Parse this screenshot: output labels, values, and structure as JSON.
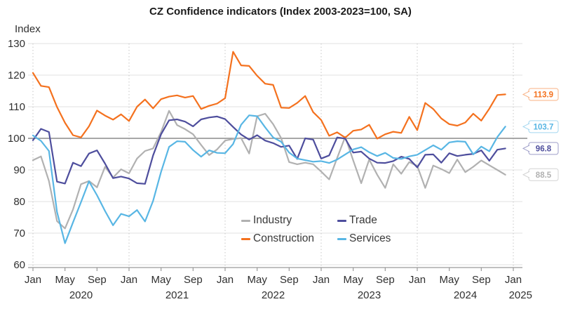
{
  "title": "CZ Confidence indicators (Index 2003-2023=100, SA)",
  "y_axis_label": "Index",
  "colors": {
    "industry": "#B1B1B1",
    "construction": "#F4711E",
    "trade": "#4E4E9D",
    "services": "#58B6E4",
    "grid": "#E2E2E2",
    "reference_line": "#8C8C8C",
    "jan_dotted": "#C6C6C6",
    "axis": "#9A9A9A",
    "tick_text": "#303030"
  },
  "chart_data": {
    "type": "line",
    "title": "CZ Confidence indicators (Index 2003-2023=100, SA)",
    "xlabel": "",
    "ylabel": "Index",
    "ylim": [
      60,
      130
    ],
    "y_ticks": [
      60,
      70,
      80,
      90,
      100,
      110,
      120,
      130
    ],
    "reference_line": 100,
    "grid": "horizontal solid, dotted vertical at each January",
    "legend_position": "inside bottom center, two columns",
    "x_start": "2020-01",
    "x_end": "2024-12",
    "x_ticks": [
      {
        "month_index": 0,
        "label": "Jan"
      },
      {
        "month_index": 4,
        "label": "May"
      },
      {
        "month_index": 8,
        "label": "Sep"
      },
      {
        "month_index": 12,
        "label": "Jan"
      },
      {
        "month_index": 16,
        "label": "May"
      },
      {
        "month_index": 20,
        "label": "Sep"
      },
      {
        "month_index": 24,
        "label": "Jan"
      },
      {
        "month_index": 28,
        "label": "May"
      },
      {
        "month_index": 32,
        "label": "Sep"
      },
      {
        "month_index": 36,
        "label": "Jan"
      },
      {
        "month_index": 40,
        "label": "May"
      },
      {
        "month_index": 44,
        "label": "Sep"
      },
      {
        "month_index": 48,
        "label": "Jan"
      },
      {
        "month_index": 52,
        "label": "May"
      },
      {
        "month_index": 56,
        "label": "Sep"
      },
      {
        "month_index": 60,
        "label": "Jan"
      }
    ],
    "year_labels": [
      {
        "label": "2020",
        "month_center": 6
      },
      {
        "label": "2021",
        "month_center": 18
      },
      {
        "label": "2022",
        "month_center": 30
      },
      {
        "label": "2023",
        "month_center": 42
      },
      {
        "label": "2024",
        "month_center": 54
      },
      {
        "label": "2025",
        "month_center": 60.9
      }
    ],
    "series": [
      {
        "name": "Industry",
        "color_key": "industry",
        "values": [
          93.1,
          94.3,
          86.5,
          73.8,
          71.5,
          77.5,
          85.5,
          86.5,
          84.5,
          91,
          87.6,
          90.2,
          88.9,
          93.6,
          96,
          96.8,
          102,
          108.7,
          104.2,
          102.9,
          101.3,
          97.9,
          94.7,
          96.5,
          99.3,
          99.8,
          100.1,
          95.2,
          107,
          107.8,
          104.5,
          100.1,
          92.5,
          91.8,
          92.3,
          91.8,
          89.5,
          87,
          93.8,
          100.5,
          93,
          85.8,
          93.3,
          88.5,
          84.3,
          91.8,
          88.8,
          92.5,
          91.3,
          84.3,
          91.4,
          90.3,
          89,
          93.3,
          89.3,
          91,
          93,
          91.5,
          90,
          88.5
        ]
      },
      {
        "name": "Construction",
        "color_key": "construction",
        "values": [
          120.7,
          116.6,
          116.2,
          109.9,
          104.9,
          101,
          100.3,
          103.8,
          108.8,
          107.2,
          105.9,
          107.6,
          105.5,
          110,
          112.3,
          109.5,
          112.4,
          113.2,
          113.6,
          112.9,
          113.4,
          109.3,
          110.3,
          111,
          112.7,
          127.4,
          123.1,
          122.9,
          119.8,
          117.3,
          116.9,
          109.7,
          109.6,
          111.2,
          113.4,
          108.3,
          105.8,
          100.8,
          101.9,
          100.2,
          102.4,
          102.8,
          104.3,
          99.9,
          101.3,
          102.1,
          101.7,
          106.8,
          102.6,
          111.2,
          109.3,
          106.3,
          104.5,
          104,
          105,
          107.8,
          105.6,
          109.4,
          113.7,
          113.9
        ]
      },
      {
        "name": "Trade",
        "color_key": "trade",
        "values": [
          99.4,
          103,
          102,
          86.3,
          85.7,
          92.3,
          91.2,
          95.2,
          96.2,
          92,
          87.4,
          87.9,
          87.3,
          85.8,
          85.6,
          94.6,
          101.3,
          105.7,
          106,
          105.3,
          103.8,
          106,
          106.6,
          106.9,
          106.1,
          103.6,
          101.2,
          99.6,
          101,
          99.3,
          98.5,
          97.3,
          97.7,
          93.5,
          100,
          99.6,
          93.6,
          94.6,
          100.3,
          99.9,
          95.5,
          95.8,
          93.6,
          92.3,
          92.2,
          92.8,
          94.2,
          93.5,
          90.8,
          94.8,
          94.9,
          92.3,
          95.3,
          94.4,
          94.8,
          95.1,
          96.2,
          92.9,
          96.4,
          96.8
        ]
      },
      {
        "name": "Services",
        "color_key": "services",
        "values": [
          100.9,
          99.2,
          96,
          76.7,
          66.8,
          73.4,
          79.8,
          86.4,
          82,
          77,
          72.5,
          76.1,
          75.3,
          77.3,
          73.7,
          80.2,
          89.4,
          97.3,
          99.1,
          98.9,
          96.3,
          94.2,
          96.2,
          95.4,
          95.3,
          98.2,
          104.3,
          107.3,
          107,
          103.5,
          100.3,
          98.9,
          95.5,
          93.6,
          93.1,
          92.6,
          92.8,
          92.2,
          93.3,
          94.9,
          96.5,
          97.2,
          95.6,
          94.4,
          95.4,
          93.8,
          93.5,
          94.3,
          94.8,
          96.3,
          97.8,
          96.4,
          98.7,
          99.1,
          98.9,
          94.9,
          97.4,
          95.9,
          100.4,
          103.7
        ]
      }
    ],
    "end_labels": [
      {
        "series": "Construction",
        "text": "113.9",
        "value": 113.9
      },
      {
        "series": "Services",
        "text": "103.7",
        "value": 103.7
      },
      {
        "series": "Trade",
        "text": "96.8",
        "value": 96.8
      },
      {
        "series": "Industry",
        "text": "88.5",
        "value": 88.5
      }
    ],
    "legend_columns": [
      [
        "Industry",
        "Construction"
      ],
      [
        "Trade",
        "Services"
      ]
    ]
  }
}
